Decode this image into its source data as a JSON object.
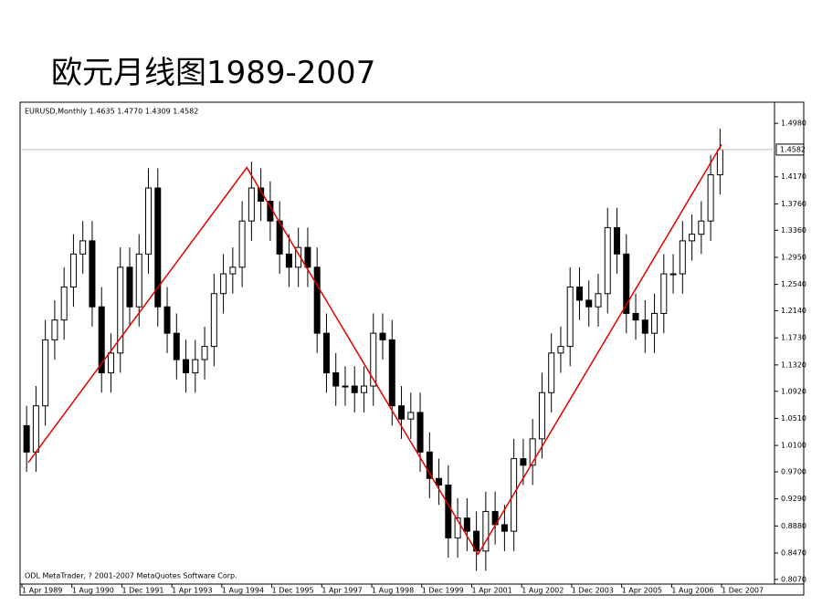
{
  "slide_title": "欧元月线图1989-2007",
  "chart_data": {
    "type": "candlestick",
    "header": "EURUSD,Monthly  1.4635 1.4770 1.4309 1.4582",
    "footer": "ODL MetaTrader, ? 2001-2007 MetaQuotes Software Corp.",
    "ylim": [
      0.8,
      1.53
    ],
    "yticks": [
      {
        "value": 1.498,
        "label": "1.4980"
      },
      {
        "value": 1.417,
        "label": "1.4170"
      },
      {
        "value": 1.376,
        "label": "1.3760"
      },
      {
        "value": 1.336,
        "label": "1.3360"
      },
      {
        "value": 1.295,
        "label": "1.2950"
      },
      {
        "value": 1.254,
        "label": "1.2540"
      },
      {
        "value": 1.214,
        "label": "1.2140"
      },
      {
        "value": 1.173,
        "label": "1.1730"
      },
      {
        "value": 1.132,
        "label": "1.1320"
      },
      {
        "value": 1.092,
        "label": "1.0920"
      },
      {
        "value": 1.051,
        "label": "1.0510"
      },
      {
        "value": 1.01,
        "label": "1.0100"
      },
      {
        "value": 0.97,
        "label": "0.9700"
      },
      {
        "value": 0.929,
        "label": "0.9290"
      },
      {
        "value": 0.888,
        "label": "0.8880"
      },
      {
        "value": 0.847,
        "label": "0.8470"
      },
      {
        "value": 0.807,
        "label": "0.8070"
      }
    ],
    "xticks": [
      {
        "value": "1989-04-01",
        "label": "1 Apr 1989"
      },
      {
        "value": "1990-08-01",
        "label": "1 Aug 1990"
      },
      {
        "value": "1991-12-01",
        "label": "1 Dec 1991"
      },
      {
        "value": "1993-04-01",
        "label": "1 Apr 1993"
      },
      {
        "value": "1994-08-01",
        "label": "1 Aug 1994"
      },
      {
        "value": "1995-12-01",
        "label": "1 Dec 1995"
      },
      {
        "value": "1997-04-01",
        "label": "1 Apr 1997"
      },
      {
        "value": "1998-08-01",
        "label": "1 Aug 1998"
      },
      {
        "value": "1999-12-01",
        "label": "1 Dec 1999"
      },
      {
        "value": "2001-04-01",
        "label": "1 Apr 2001"
      },
      {
        "value": "2002-08-01",
        "label": "1 Aug 2002"
      },
      {
        "value": "2003-12-01",
        "label": "1 Dec 2003"
      },
      {
        "value": "2005-04-01",
        "label": "1 Apr 2005"
      },
      {
        "value": "2006-08-01",
        "label": "1 Aug 2006"
      },
      {
        "value": "2007-12-01",
        "label": "1 Dec 2007"
      }
    ],
    "current_price": 1.4582,
    "candles": {
      "x": [
        "1989-04",
        "1989-07",
        "1989-10",
        "1990-01",
        "1990-04",
        "1990-07",
        "1990-10",
        "1991-01",
        "1991-04",
        "1991-07",
        "1991-10",
        "1992-01",
        "1992-04",
        "1992-07",
        "1992-10",
        "1993-01",
        "1993-04",
        "1993-07",
        "1993-10",
        "1994-01",
        "1994-04",
        "1994-07",
        "1994-10",
        "1995-01",
        "1995-04",
        "1995-07",
        "1995-10",
        "1996-01",
        "1996-04",
        "1996-07",
        "1996-10",
        "1997-01",
        "1997-04",
        "1997-07",
        "1997-10",
        "1998-01",
        "1998-04",
        "1998-07",
        "1998-10",
        "1999-01",
        "1999-04",
        "1999-07",
        "1999-10",
        "2000-01",
        "2000-04",
        "2000-07",
        "2000-10",
        "2001-01",
        "2001-04",
        "2001-07",
        "2001-10",
        "2002-01",
        "2002-04",
        "2002-07",
        "2002-10",
        "2003-01",
        "2003-04",
        "2003-07",
        "2003-10",
        "2004-01",
        "2004-04",
        "2004-07",
        "2004-10",
        "2005-01",
        "2005-04",
        "2005-07",
        "2005-10",
        "2006-01",
        "2006-04",
        "2006-07",
        "2006-10",
        "2007-01",
        "2007-04",
        "2007-07",
        "2007-10"
      ],
      "open": [
        1.04,
        1.0,
        1.07,
        1.17,
        1.2,
        1.25,
        1.3,
        1.32,
        1.22,
        1.12,
        1.15,
        1.28,
        1.22,
        1.3,
        1.4,
        1.22,
        1.18,
        1.14,
        1.12,
        1.14,
        1.16,
        1.24,
        1.27,
        1.28,
        1.35,
        1.4,
        1.38,
        1.35,
        1.3,
        1.28,
        1.31,
        1.28,
        1.18,
        1.12,
        1.1,
        1.1,
        1.09,
        1.1,
        1.18,
        1.17,
        1.07,
        1.05,
        1.06,
        1.0,
        0.96,
        0.95,
        0.87,
        0.9,
        0.88,
        0.85,
        0.91,
        0.89,
        0.88,
        0.99,
        0.98,
        1.02,
        1.09,
        1.15,
        1.16,
        1.25,
        1.23,
        1.22,
        1.24,
        1.34,
        1.3,
        1.21,
        1.2,
        1.18,
        1.21,
        1.27,
        1.27,
        1.32,
        1.33,
        1.35,
        1.42
      ],
      "high": [
        1.07,
        1.1,
        1.2,
        1.23,
        1.28,
        1.33,
        1.35,
        1.35,
        1.25,
        1.18,
        1.31,
        1.31,
        1.33,
        1.43,
        1.43,
        1.25,
        1.21,
        1.17,
        1.17,
        1.19,
        1.27,
        1.3,
        1.31,
        1.38,
        1.44,
        1.43,
        1.41,
        1.38,
        1.33,
        1.34,
        1.34,
        1.31,
        1.21,
        1.15,
        1.13,
        1.13,
        1.13,
        1.21,
        1.21,
        1.2,
        1.1,
        1.09,
        1.09,
        1.03,
        0.99,
        0.98,
        0.93,
        0.93,
        0.91,
        0.94,
        0.94,
        0.92,
        1.02,
        1.02,
        1.05,
        1.12,
        1.18,
        1.19,
        1.28,
        1.28,
        1.26,
        1.27,
        1.37,
        1.37,
        1.33,
        1.24,
        1.23,
        1.24,
        1.3,
        1.3,
        1.35,
        1.36,
        1.38,
        1.45,
        1.49
      ],
      "low": [
        0.97,
        0.97,
        1.04,
        1.14,
        1.17,
        1.22,
        1.27,
        1.19,
        1.09,
        1.09,
        1.12,
        1.19,
        1.19,
        1.27,
        1.19,
        1.15,
        1.11,
        1.09,
        1.09,
        1.11,
        1.13,
        1.21,
        1.24,
        1.25,
        1.32,
        1.35,
        1.32,
        1.27,
        1.25,
        1.25,
        1.25,
        1.15,
        1.09,
        1.07,
        1.07,
        1.06,
        1.06,
        1.07,
        1.14,
        1.04,
        1.02,
        1.02,
        0.97,
        0.93,
        0.92,
        0.84,
        0.84,
        0.85,
        0.82,
        0.82,
        0.86,
        0.85,
        0.85,
        0.95,
        0.95,
        0.99,
        1.06,
        1.12,
        1.13,
        1.2,
        1.19,
        1.19,
        1.21,
        1.27,
        1.18,
        1.17,
        1.15,
        1.15,
        1.18,
        1.24,
        1.24,
        1.29,
        1.3,
        1.32,
        1.39
      ],
      "close": [
        1.0,
        1.07,
        1.17,
        1.2,
        1.25,
        1.3,
        1.32,
        1.22,
        1.12,
        1.15,
        1.28,
        1.22,
        1.3,
        1.4,
        1.22,
        1.18,
        1.14,
        1.12,
        1.14,
        1.16,
        1.24,
        1.27,
        1.28,
        1.35,
        1.4,
        1.38,
        1.35,
        1.3,
        1.28,
        1.31,
        1.28,
        1.18,
        1.12,
        1.1,
        1.1,
        1.09,
        1.1,
        1.18,
        1.17,
        1.07,
        1.05,
        1.06,
        1.0,
        0.96,
        0.95,
        0.87,
        0.9,
        0.88,
        0.85,
        0.91,
        0.89,
        0.88,
        0.99,
        0.98,
        1.02,
        1.09,
        1.15,
        1.16,
        1.25,
        1.23,
        1.22,
        1.24,
        1.34,
        1.3,
        1.21,
        1.2,
        1.18,
        1.21,
        1.27,
        1.27,
        1.32,
        1.33,
        1.35,
        1.42,
        1.4582
      ]
    },
    "trendline": {
      "color": "#e00000",
      "x": [
        "1989-06",
        "1995-04",
        "2001-06",
        "2007-12"
      ],
      "values": [
        0.984,
        1.431,
        0.845,
        1.466
      ]
    }
  }
}
